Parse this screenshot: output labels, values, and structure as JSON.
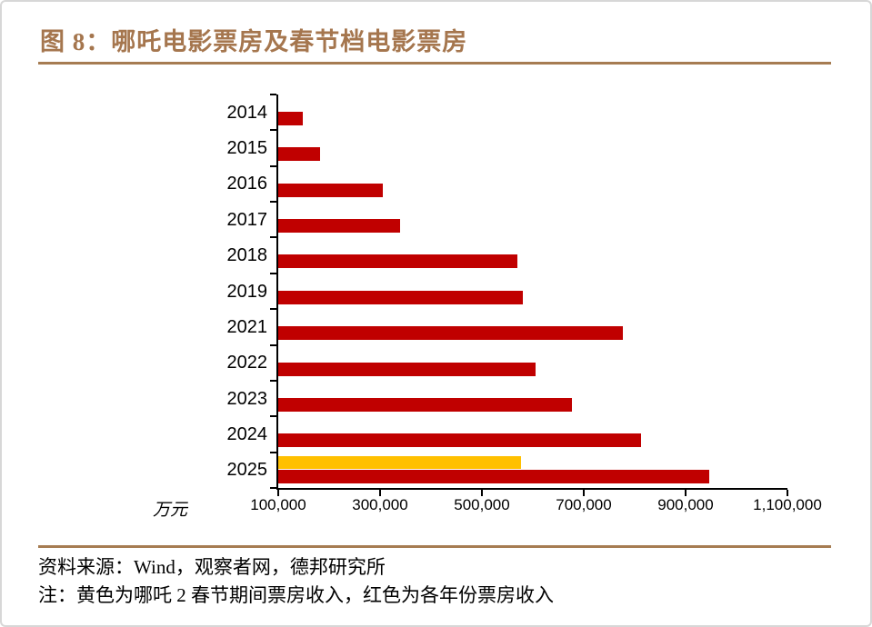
{
  "figure": {
    "title": "图 8：哪吒电影票房及春节档电影票房",
    "source_line": "资料来源：Wind，观察者网，德邦研究所",
    "note_line": "注：黄色为哪吒 2 春节期间票房收入，红色为各年份票房收入",
    "unit_label": "万元"
  },
  "colors": {
    "accent_brown": "#a67c52",
    "title_brown": "#a5764e",
    "bar_red": "#c00000",
    "bar_yellow": "#ffc000",
    "axis_black": "#000000"
  },
  "chart_data": {
    "type": "bar",
    "orientation": "horizontal",
    "title": "哪吒电影票房及春节档电影票房",
    "xlabel_unit": "万元",
    "categories": [
      "2014",
      "2015",
      "2016",
      "2017",
      "2018",
      "2019",
      "2021",
      "2022",
      "2023",
      "2024",
      "2025"
    ],
    "series": [
      {
        "name": "哪吒2春节期间票房收入",
        "color": "#ffc000",
        "values": [
          null,
          null,
          null,
          null,
          null,
          null,
          null,
          null,
          null,
          null,
          577000
        ]
      },
      {
        "name": "各年份春节档票房收入",
        "color": "#c00000",
        "values": [
          148000,
          182000,
          305000,
          339000,
          570000,
          580000,
          777000,
          605000,
          676000,
          813000,
          946000
        ]
      }
    ],
    "x_axis": {
      "min": 100000,
      "max": 1100000,
      "tick_interval": 200000,
      "tick_labels": [
        "100,000",
        "300,000",
        "500,000",
        "700,000",
        "900,000",
        "1,100,000"
      ]
    },
    "grid": false,
    "legend": "none (explained in note below chart)"
  }
}
